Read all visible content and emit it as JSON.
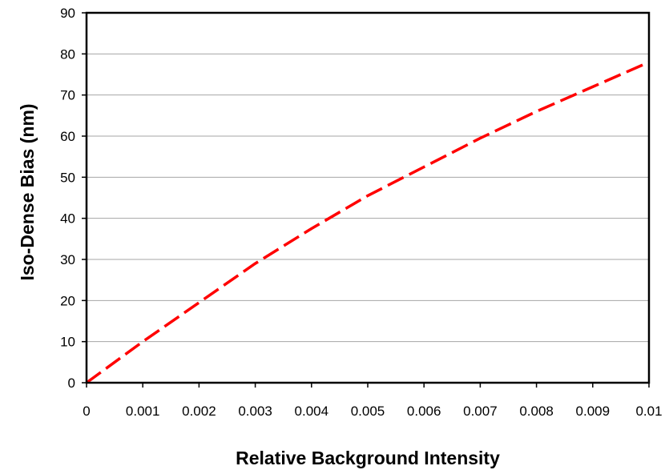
{
  "chart_data": {
    "type": "line",
    "title": "",
    "xlabel": "Relative Background Intensity",
    "ylabel": "Iso-Dense Bias (nm)",
    "xlim": [
      0,
      0.01
    ],
    "ylim": [
      0,
      90
    ],
    "x_ticks": [
      "0",
      "0.001",
      "0.002",
      "0.003",
      "0.004",
      "0.005",
      "0.006",
      "0.007",
      "0.008",
      "0.009",
      "0.01"
    ],
    "y_ticks": [
      "0",
      "10",
      "20",
      "30",
      "40",
      "50",
      "60",
      "70",
      "80",
      "90"
    ],
    "grid": {
      "horizontal": true,
      "vertical": false
    },
    "legend": "none",
    "series": [
      {
        "color": "#ff0000",
        "line_style": "dashed",
        "x": [
          0,
          0.001,
          0.002,
          0.003,
          0.004,
          0.005,
          0.006,
          0.007,
          0.008,
          0.009,
          0.01
        ],
        "y": [
          0,
          10,
          19.5,
          29,
          37.5,
          45.5,
          52.5,
          59.5,
          66,
          72,
          78
        ]
      }
    ]
  }
}
